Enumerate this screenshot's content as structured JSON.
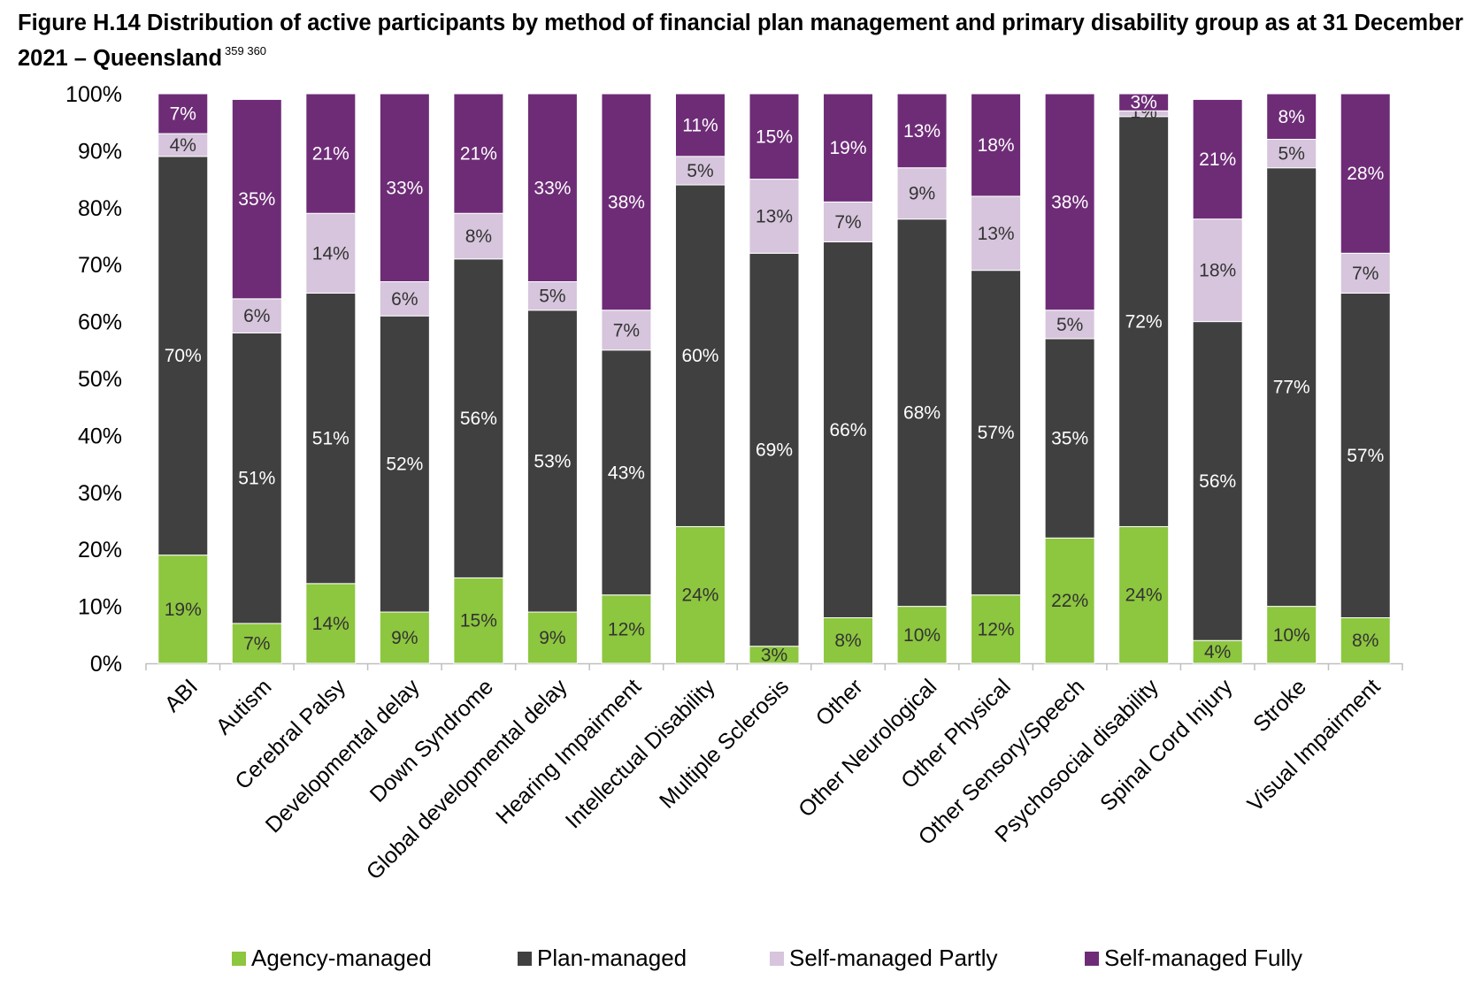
{
  "title": "Figure H.14 Distribution of active participants by method of financial plan management and primary disability group as at 31 December 2021 – Queensland",
  "title_superscripts": "359 360",
  "chart_data": {
    "type": "bar",
    "stacked": true,
    "percent_stacked": true,
    "title": "Figure H.14 Distribution of active participants by method of financial plan management and primary disability group as at 31 December 2021 – Queensland",
    "xlabel": "",
    "ylabel": "",
    "ylim": [
      0,
      100
    ],
    "y_ticks": [
      "0%",
      "10%",
      "20%",
      "30%",
      "40%",
      "50%",
      "60%",
      "70%",
      "80%",
      "90%",
      "100%"
    ],
    "grid": false,
    "legend_position": "bottom",
    "categories": [
      "ABI",
      "Autism",
      "Cerebral Palsy",
      "Developmental delay",
      "Down Syndrome",
      "Global developmental delay",
      "Hearing Impairment",
      "Intellectual Disability",
      "Multiple Sclerosis",
      "Other",
      "Other Neurological",
      "Other Physical",
      "Other Sensory/Speech",
      "Psychosocial disability",
      "Spinal Cord Injury",
      "Stroke",
      "Visual Impairment"
    ],
    "series": [
      {
        "name": "Agency-managed",
        "color": "#8dc63f",
        "label_color": "#333333",
        "values": [
          19,
          7,
          14,
          9,
          15,
          9,
          12,
          24,
          3,
          8,
          10,
          12,
          22,
          24,
          4,
          10,
          8
        ]
      },
      {
        "name": "Plan-managed",
        "color": "#404040",
        "label_color": "#ffffff",
        "values": [
          70,
          51,
          51,
          52,
          56,
          53,
          43,
          60,
          69,
          66,
          68,
          57,
          35,
          72,
          56,
          77,
          57
        ]
      },
      {
        "name": "Self-managed Partly",
        "color": "#d6c5dc",
        "label_color": "#333333",
        "values": [
          4,
          6,
          14,
          6,
          8,
          5,
          7,
          5,
          13,
          7,
          9,
          13,
          5,
          1,
          18,
          5,
          7
        ]
      },
      {
        "name": "Self-managed Fully",
        "color": "#6e2c77",
        "label_color": "#ffffff",
        "values": [
          7,
          35,
          21,
          33,
          21,
          33,
          38,
          11,
          15,
          19,
          13,
          18,
          38,
          3,
          21,
          8,
          28
        ]
      }
    ]
  }
}
